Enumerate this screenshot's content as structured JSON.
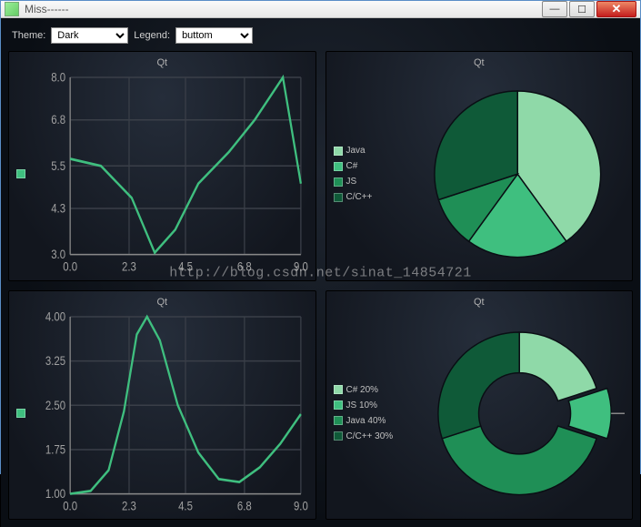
{
  "window": {
    "title": "Miss------"
  },
  "controls": {
    "theme_label": "Theme:",
    "theme_value": "Dark",
    "legend_label": "Legend:",
    "legend_value": "buttom"
  },
  "watermark": "http://blog.csdn.net/sinat_14854721",
  "palette": {
    "series_green": "#3fbf7f",
    "pie1": "#8fd9a8",
    "pie2": "#3fbf7f",
    "pie3": "#1f8f56",
    "pie4": "#0f5a38",
    "bg": "#141a22",
    "axis": "#888888",
    "grid": "#3a3f48",
    "text": "#a0a0a0"
  },
  "chart_tl": {
    "type": "line",
    "title": "Qt",
    "xlim": [
      0,
      9
    ],
    "xticks": [
      0.0,
      2.3,
      4.5,
      6.8,
      9.0
    ],
    "ylim": [
      3,
      8
    ],
    "yticks": [
      3.0,
      4.3,
      5.5,
      6.8,
      8.0
    ],
    "color": "#3fbf7f",
    "points": [
      [
        0,
        5.7
      ],
      [
        1.2,
        5.5
      ],
      [
        2.4,
        4.6
      ],
      [
        3.3,
        3.05
      ],
      [
        4.1,
        3.7
      ],
      [
        5.0,
        5.0
      ],
      [
        6.2,
        5.9
      ],
      [
        7.2,
        6.8
      ],
      [
        8.3,
        8.0
      ],
      [
        9.0,
        5.0
      ]
    ]
  },
  "chart_tr": {
    "type": "pie",
    "title": "Qt",
    "legend": [
      {
        "label": "Java",
        "color": "#8fd9a8",
        "value": 40
      },
      {
        "label": "C#",
        "color": "#3fbf7f",
        "value": 20
      },
      {
        "label": "JS",
        "color": "#1f8f56",
        "value": 10
      },
      {
        "label": "C/C++",
        "color": "#0f5a38",
        "value": 30
      }
    ]
  },
  "chart_bl": {
    "type": "spline",
    "title": "Qt",
    "xlim": [
      0,
      9
    ],
    "xticks": [
      0.0,
      2.3,
      4.5,
      6.8,
      9.0
    ],
    "ylim": [
      1,
      4
    ],
    "yticks": [
      1.0,
      1.75,
      2.5,
      3.25,
      4.0
    ],
    "color": "#3fbf7f",
    "points": [
      [
        0,
        1.0
      ],
      [
        0.8,
        1.05
      ],
      [
        1.5,
        1.4
      ],
      [
        2.1,
        2.4
      ],
      [
        2.6,
        3.7
      ],
      [
        3.0,
        4.0
      ],
      [
        3.5,
        3.6
      ],
      [
        4.2,
        2.5
      ],
      [
        5.0,
        1.7
      ],
      [
        5.8,
        1.25
      ],
      [
        6.6,
        1.2
      ],
      [
        7.4,
        1.45
      ],
      [
        8.2,
        1.85
      ],
      [
        9.0,
        2.35
      ]
    ]
  },
  "chart_br": {
    "type": "donut",
    "title": "Qt",
    "legend": [
      {
        "label": "C# 20%",
        "color": "#8fd9a8",
        "value": 20
      },
      {
        "label": "JS 10%",
        "color": "#3fbf7f",
        "value": 10
      },
      {
        "label": "Java 40%",
        "color": "#1f8f56",
        "value": 40
      },
      {
        "label": "C/C++ 30%",
        "color": "#0f5a38",
        "value": 30
      }
    ],
    "exploded_index": 1,
    "callout": "..."
  }
}
